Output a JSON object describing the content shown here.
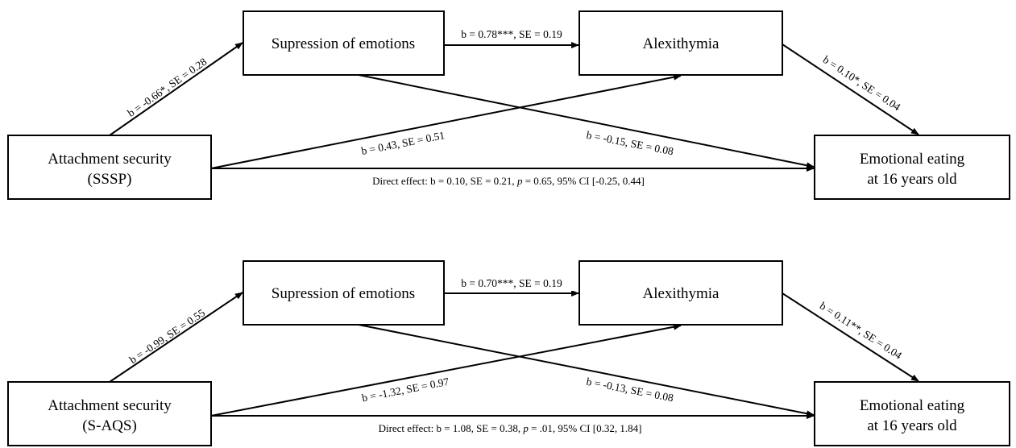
{
  "models": [
    {
      "id": "model-sssp",
      "nodes": {
        "predictor": [
          "Attachment security",
          "(SSSP)"
        ],
        "mediator1": [
          "Supression of emotions"
        ],
        "mediator2": [
          "Alexithymia"
        ],
        "outcome": [
          "Emotional eating",
          "at 16 years old"
        ]
      },
      "paths": {
        "predictor_to_m1": "b = -0.66*, SE = 0.28",
        "m1_to_m2": "b = 0.78***, SE = 0.19",
        "m2_to_outcome": "b = 0.10*, SE = 0.04",
        "predictor_to_m2": "b = 0.43, SE = 0.51",
        "m1_to_outcome": "b = -0.15, SE = 0.08",
        "direct": {
          "prefix": "Direct effect: b = 0.10, SE = 0.21, ",
          "p_symbol": "p",
          "suffix": " = 0.65, 95% CI [-0.25, 0.44]"
        }
      }
    },
    {
      "id": "model-saqs",
      "nodes": {
        "predictor": [
          "Attachment security",
          "(S-AQS)"
        ],
        "mediator1": [
          "Supression of emotions"
        ],
        "mediator2": [
          "Alexithymia"
        ],
        "outcome": [
          "Emotional eating",
          "at 16 years old"
        ]
      },
      "paths": {
        "predictor_to_m1": "b = -0.99, SE = 0.55",
        "m1_to_m2": "b = 0.70***, SE = 0.19",
        "m2_to_outcome": "b = 0.11**, SE = 0.04",
        "predictor_to_m2": "b = -1.32, SE = 0.97",
        "m1_to_outcome": "b = -0.13, SE = 0.08",
        "direct": {
          "prefix": "Direct effect: b = 1.08, SE = 0.38, ",
          "p_symbol": "p",
          "suffix": " = .01, 95% CI [0.32, 1.84]"
        }
      }
    }
  ]
}
